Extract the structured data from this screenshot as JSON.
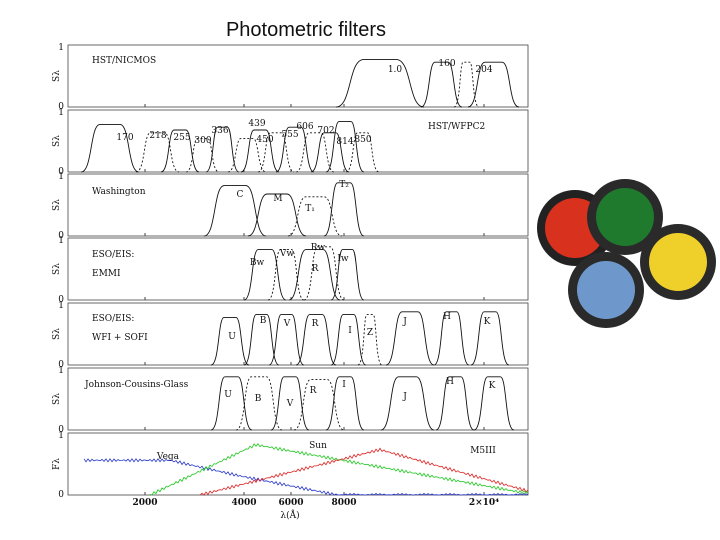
{
  "title": "Photometric filters",
  "figure": {
    "panels": [
      {
        "name": [
          "HST/NICMOS"
        ],
        "labels": [
          "1.0",
          "160",
          "204"
        ],
        "y_label": "Sλ"
      },
      {
        "name": [
          "HST/WFPC2"
        ],
        "labels": [
          "170",
          "218",
          "255",
          "300",
          "336",
          "439",
          "450",
          "555",
          "606",
          "702",
          "814",
          "850"
        ],
        "y_label": "Sλ"
      },
      {
        "name": [
          "Washington"
        ],
        "labels": [
          "C",
          "M",
          "T₁",
          "T₂"
        ],
        "y_label": "Sλ"
      },
      {
        "name": [
          "ESO/EIS:",
          "EMMI"
        ],
        "labels": [
          "Bw",
          "Vw",
          "R",
          "Rw",
          "Iw"
        ],
        "y_label": "Sλ"
      },
      {
        "name": [
          "ESO/EIS:",
          "WFI + SOFI"
        ],
        "labels": [
          "U",
          "B",
          "V",
          "R",
          "I",
          "Z",
          "J",
          "H",
          "K"
        ],
        "y_label": "Sλ"
      },
      {
        "name": [
          "Johnson-Cousins-Glass"
        ],
        "labels": [
          "U",
          "B",
          "V",
          "R",
          "I",
          "J",
          "H",
          "K"
        ],
        "y_label": "Sλ"
      },
      {
        "name": [],
        "labels": [
          "Vega",
          "Sun",
          "M5III"
        ],
        "y_label": "Fλ"
      }
    ],
    "y_ticks": [
      "1",
      "0"
    ],
    "x_ticks": [
      "2000",
      "4000",
      "6000",
      "8000",
      "2×10⁴"
    ],
    "x_label": "λ(Å)"
  }
}
